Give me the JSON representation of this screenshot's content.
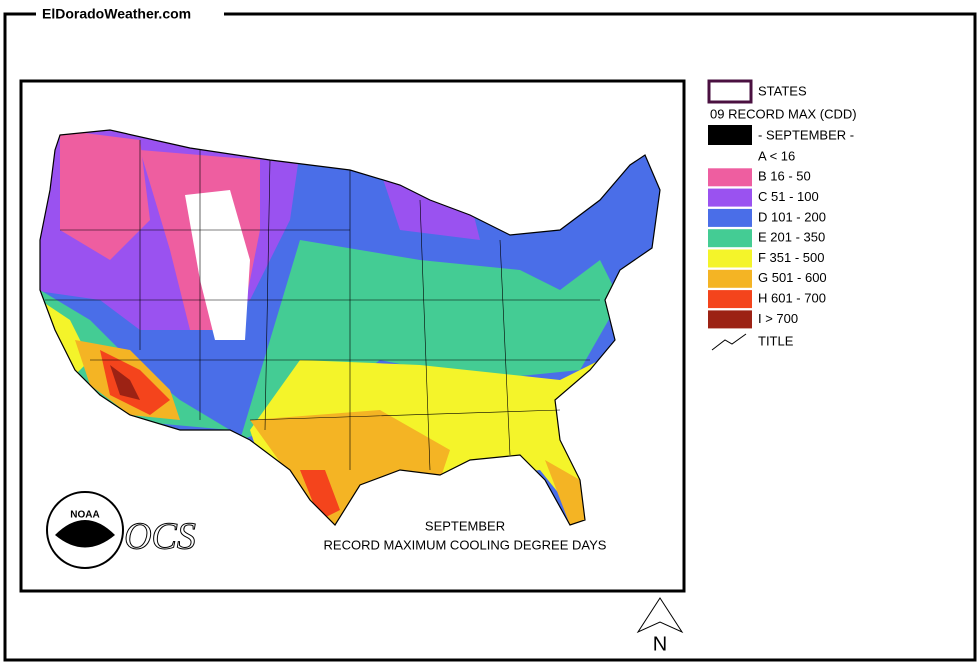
{
  "header": {
    "site": "ElDoradoWeather.com"
  },
  "map": {
    "title_lines": [
      "SEPTEMBER",
      "RECORD MAXIMUM COOLING DEGREE DAYS"
    ],
    "logo_noaa": "NOAA",
    "logo_ocs": "OCS",
    "north": "N"
  },
  "legend": {
    "states": "STATES",
    "layer": "09 RECORD MAX (CDD)",
    "month": "- SEPTEMBER -",
    "classes": [
      {
        "label": "A < 16",
        "color": "#ffffff"
      },
      {
        "label": "B 16 - 50",
        "color": "#ee5ea0"
      },
      {
        "label": "C 51 - 100",
        "color": "#9a52f0"
      },
      {
        "label": "D 101 - 200",
        "color": "#4a6ee8"
      },
      {
        "label": "E 201 - 350",
        "color": "#44cc94"
      },
      {
        "label": "F 351 - 500",
        "color": "#f4f42a"
      },
      {
        "label": "G 501 - 600",
        "color": "#f4b424"
      },
      {
        "label": "H 601 - 700",
        "color": "#f4441c"
      },
      {
        "label": "I > 700",
        "color": "#9c2214"
      }
    ],
    "title": "TITLE"
  }
}
